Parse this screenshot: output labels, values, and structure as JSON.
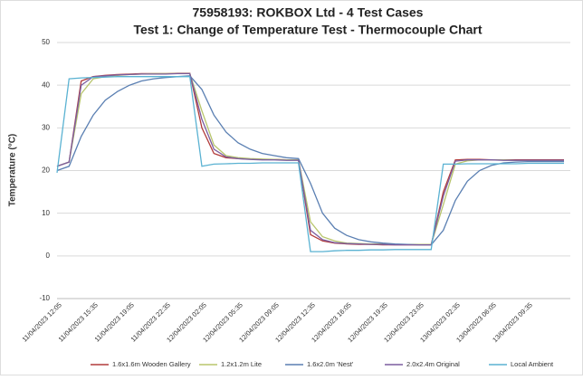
{
  "chart_data": {
    "type": "line",
    "title": "75958193: ROKBOX Ltd - 4 Test Cases",
    "subtitle": "Test 1: Change of Temperature Test - Thermocouple Chart",
    "y_label": "Temperature (°C)",
    "categories": [
      "11/04/2023 12:05",
      null,
      null,
      "11/04/2023 15:35",
      null,
      null,
      "11/04/2023 19:05",
      null,
      null,
      "11/04/2023 22:35",
      null,
      null,
      "12/04/2023 02:05",
      null,
      null,
      "12/04/2023 05:35",
      null,
      null,
      "12/04/2023 09:05",
      null,
      null,
      "12/04/2023 12:35",
      null,
      null,
      "12/04/2023 16:05",
      null,
      null,
      "12/04/2023 19:35",
      null,
      null,
      "12/04/2023 23:05",
      null,
      null,
      "13/04/2023 02:35",
      null,
      null,
      "13/04/2023 06:05",
      null,
      null,
      "13/04/2023 09:35",
      null,
      null,
      null
    ],
    "series": [
      {
        "name": "1.6x1.6m Wooden Gallery",
        "color": "#b23b3b",
        "values": [
          21,
          22,
          41,
          42,
          42.3,
          42.5,
          42.6,
          42.7,
          42.7,
          42.7,
          42.8,
          42.8,
          30,
          24,
          23,
          22.8,
          22.7,
          22.6,
          22.6,
          22.5,
          22.5,
          5,
          3.5,
          3,
          2.8,
          2.7,
          2.7,
          2.6,
          2.6,
          2.6,
          2.6,
          2.6,
          15,
          22.5,
          22.6,
          22.6,
          22.5,
          22.5,
          22.5,
          22.5,
          22.5,
          22.5,
          22.5
        ]
      },
      {
        "name": "1.2x1.2m Lite",
        "color": "#b8c56c",
        "values": [
          21,
          22,
          38,
          41.5,
          42,
          42.3,
          42.5,
          42.6,
          42.7,
          42.7,
          42.7,
          42.7,
          34,
          26,
          23.5,
          23,
          22.8,
          22.7,
          22.6,
          22.5,
          22.5,
          8,
          4.5,
          3.5,
          3,
          2.9,
          2.8,
          2.8,
          2.7,
          2.7,
          2.7,
          2.7,
          12,
          21.5,
          22.3,
          22.5,
          22.5,
          22.5,
          22.4,
          22.4,
          22.4,
          22.4,
          22.4
        ]
      },
      {
        "name": "1.6x2.0m 'Nest'",
        "color": "#5a7fb2",
        "values": [
          20,
          21,
          28,
          33,
          36.5,
          38.5,
          40,
          41,
          41.5,
          41.8,
          42,
          42.2,
          39,
          33,
          29,
          26.5,
          25,
          24,
          23.5,
          23,
          22.8,
          17,
          10,
          6.5,
          4.8,
          3.8,
          3.3,
          3,
          2.8,
          2.7,
          2.6,
          2.6,
          6,
          13,
          17.5,
          20,
          21.2,
          21.8,
          22,
          22.1,
          22.1,
          22.1,
          22.1
        ]
      },
      {
        "name": "2.0x2.4m Original",
        "color": "#7b5d9f",
        "values": [
          21,
          22,
          40,
          42,
          42.2,
          42.4,
          42.5,
          42.6,
          42.6,
          42.6,
          42.7,
          42.7,
          32,
          25,
          23.2,
          22.8,
          22.6,
          22.5,
          22.5,
          22.4,
          22.4,
          6,
          3.8,
          3.1,
          2.9,
          2.8,
          2.7,
          2.7,
          2.6,
          2.6,
          2.6,
          2.6,
          14,
          22.2,
          22.5,
          22.5,
          22.5,
          22.4,
          22.4,
          22.4,
          22.4,
          22.4,
          22.4
        ]
      },
      {
        "name": "Local Ambient",
        "color": "#5ab2d2",
        "values": [
          19.5,
          41.5,
          41.7,
          41.8,
          41.9,
          42,
          42,
          42,
          42,
          42,
          42,
          42,
          21,
          21.5,
          21.6,
          21.7,
          21.7,
          21.8,
          21.8,
          21.8,
          21.8,
          1,
          1,
          1.2,
          1.3,
          1.3,
          1.4,
          1.4,
          1.5,
          1.5,
          1.5,
          1.5,
          21.5,
          21.5,
          21.6,
          21.6,
          21.6,
          21.6,
          21.6,
          21.7,
          21.7,
          21.7,
          21.7
        ]
      }
    ],
    "ylim": [
      -10,
      50
    ],
    "yticks": [
      -10,
      0,
      10,
      20,
      30,
      40,
      50
    ],
    "grid": true
  }
}
